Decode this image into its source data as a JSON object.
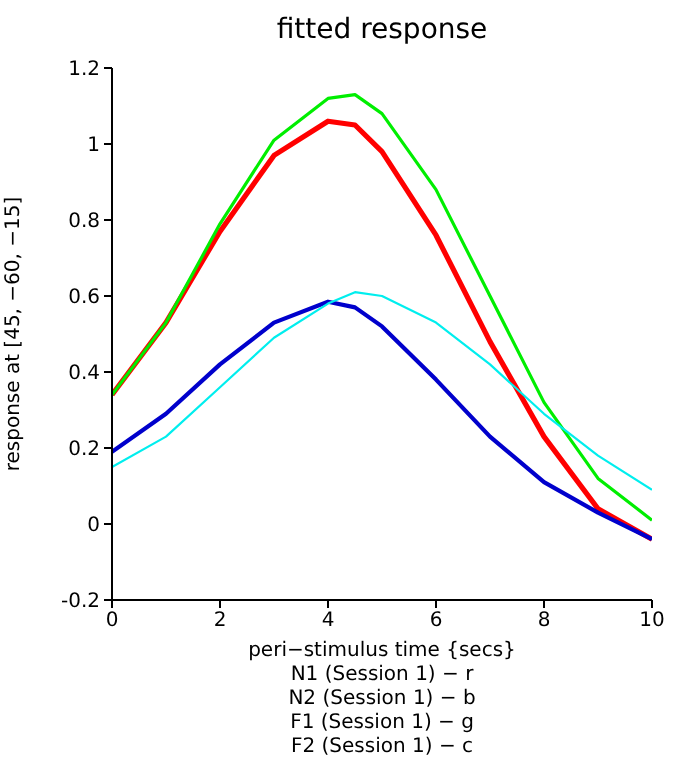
{
  "chart_data": {
    "type": "line",
    "title": "fitted response",
    "xlabel": "peri−stimulus time {secs}",
    "ylabel": "response at [45, −60, −15]",
    "annotations": [
      "N1 (Session 1) − r",
      "N2 (Session 1) − b",
      "F1 (Session 1) − g",
      "F2 (Session 1) − c"
    ],
    "x": [
      0,
      1,
      2,
      3,
      4,
      4.5,
      5,
      6,
      7,
      8,
      9,
      10
    ],
    "series": [
      {
        "color": "#ff0000",
        "values": [
          0.34,
          0.53,
          0.77,
          0.97,
          1.06,
          1.05,
          0.98,
          0.76,
          0.48,
          0.23,
          0.04,
          -0.04
        ]
      },
      {
        "color": "#0000cc",
        "values": [
          0.19,
          0.29,
          0.42,
          0.53,
          0.585,
          0.57,
          0.52,
          0.38,
          0.23,
          0.11,
          0.03,
          -0.04
        ]
      },
      {
        "color": "#00ee00",
        "values": [
          0.34,
          0.53,
          0.79,
          1.01,
          1.12,
          1.13,
          1.08,
          0.88,
          0.6,
          0.32,
          0.12,
          0.01
        ]
      },
      {
        "color": "#00eeee",
        "values": [
          0.15,
          0.23,
          0.36,
          0.49,
          0.58,
          0.61,
          0.6,
          0.53,
          0.42,
          0.29,
          0.18,
          0.09
        ]
      }
    ],
    "xlim": [
      0,
      10
    ],
    "xticks": [
      0,
      2,
      4,
      6,
      8,
      10
    ],
    "ylim": [
      -0.2,
      1.2
    ],
    "yticks": [
      -0.2,
      0,
      0.2,
      0.4,
      0.6,
      0.8,
      1,
      1.2
    ],
    "grid": false,
    "legend": false,
    "marker": "none",
    "line_style": "solid"
  }
}
